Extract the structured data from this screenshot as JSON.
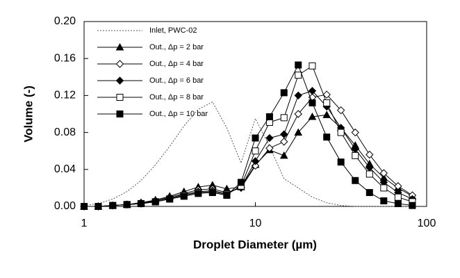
{
  "chart_data": {
    "type": "line",
    "x_label": "Droplet Diameter (µm)",
    "y_label": "Volume (-)",
    "x_scale": "log",
    "xlim": [
      1,
      100
    ],
    "xticks": [
      1,
      10,
      100
    ],
    "ylim": [
      0,
      0.2
    ],
    "yticks": [
      {
        "value": 0,
        "label": "0.00"
      },
      {
        "value": 0.04,
        "label": "0.04"
      },
      {
        "value": 0.08,
        "label": "0.08"
      },
      {
        "value": 0.12,
        "label": "0.12"
      },
      {
        "value": 0.16,
        "label": "0.16"
      },
      {
        "value": 0.2,
        "label": "0.20"
      }
    ],
    "legend": "upper left",
    "x": [
      1,
      1.21,
      1.47,
      1.78,
      2.15,
      2.61,
      3.16,
      3.83,
      4.64,
      5.62,
      6.81,
      8.25,
      10,
      12.1,
      14.7,
      17.8,
      21.5,
      26.1,
      31.6,
      38.3,
      46.4,
      56.2,
      68.1,
      82.5
    ],
    "series": [
      {
        "name": "Inlet, PWC-02",
        "color": "#555555",
        "dash": true,
        "marker": "none",
        "values": [
          0.001,
          0.003,
          0.008,
          0.016,
          0.028,
          0.045,
          0.065,
          0.087,
          0.105,
          0.113,
          0.085,
          0.047,
          0.095,
          0.065,
          0.03,
          0.02,
          0.01,
          0.004,
          0.001,
          0,
          0,
          0,
          0,
          0
        ]
      },
      {
        "name": "Out., Δp = 2 bar",
        "color": "#000000",
        "marker": "triangle",
        "filled": true,
        "values": [
          0,
          0,
          0.001,
          0.002,
          0.004,
          0.007,
          0.011,
          0.016,
          0.021,
          0.023,
          0.019,
          0.021,
          0.045,
          0.061,
          0.055,
          0.08,
          0.097,
          0.099,
          0.085,
          0.066,
          0.046,
          0.031,
          0.02,
          0.011
        ]
      },
      {
        "name": "Out., Δp = 4 bar",
        "color": "#000000",
        "marker": "diamond",
        "filled": false,
        "values": [
          0,
          0,
          0.001,
          0.002,
          0.004,
          0.006,
          0.01,
          0.014,
          0.018,
          0.019,
          0.015,
          0.02,
          0.044,
          0.063,
          0.07,
          0.1,
          0.118,
          0.121,
          0.104,
          0.08,
          0.056,
          0.036,
          0.022,
          0.012
        ]
      },
      {
        "name": "Out., Δp = 6 bar",
        "color": "#000000",
        "marker": "diamond",
        "filled": true,
        "values": [
          0,
          0,
          0.001,
          0.002,
          0.003,
          0.006,
          0.009,
          0.013,
          0.016,
          0.017,
          0.014,
          0.021,
          0.049,
          0.074,
          0.078,
          0.12,
          0.125,
          0.108,
          0.085,
          0.062,
          0.042,
          0.026,
          0.015,
          0.008
        ]
      },
      {
        "name": "Out., Δp = 8 bar",
        "color": "#000000",
        "marker": "square",
        "filled": false,
        "values": [
          0,
          0,
          0.001,
          0.002,
          0.003,
          0.005,
          0.008,
          0.012,
          0.015,
          0.016,
          0.013,
          0.022,
          0.06,
          0.091,
          0.096,
          0.142,
          0.152,
          0.112,
          0.08,
          0.055,
          0.035,
          0.02,
          0.01,
          0.005
        ]
      },
      {
        "name": "Out., Δp = 10 bar",
        "color": "#000000",
        "marker": "square",
        "filled": true,
        "values": [
          0,
          0,
          0.001,
          0.002,
          0.003,
          0.005,
          0.008,
          0.011,
          0.014,
          0.015,
          0.012,
          0.026,
          0.074,
          0.097,
          0.123,
          0.153,
          0.112,
          0.075,
          0.048,
          0.028,
          0.015,
          0.006,
          0.003,
          0.001
        ]
      }
    ]
  }
}
